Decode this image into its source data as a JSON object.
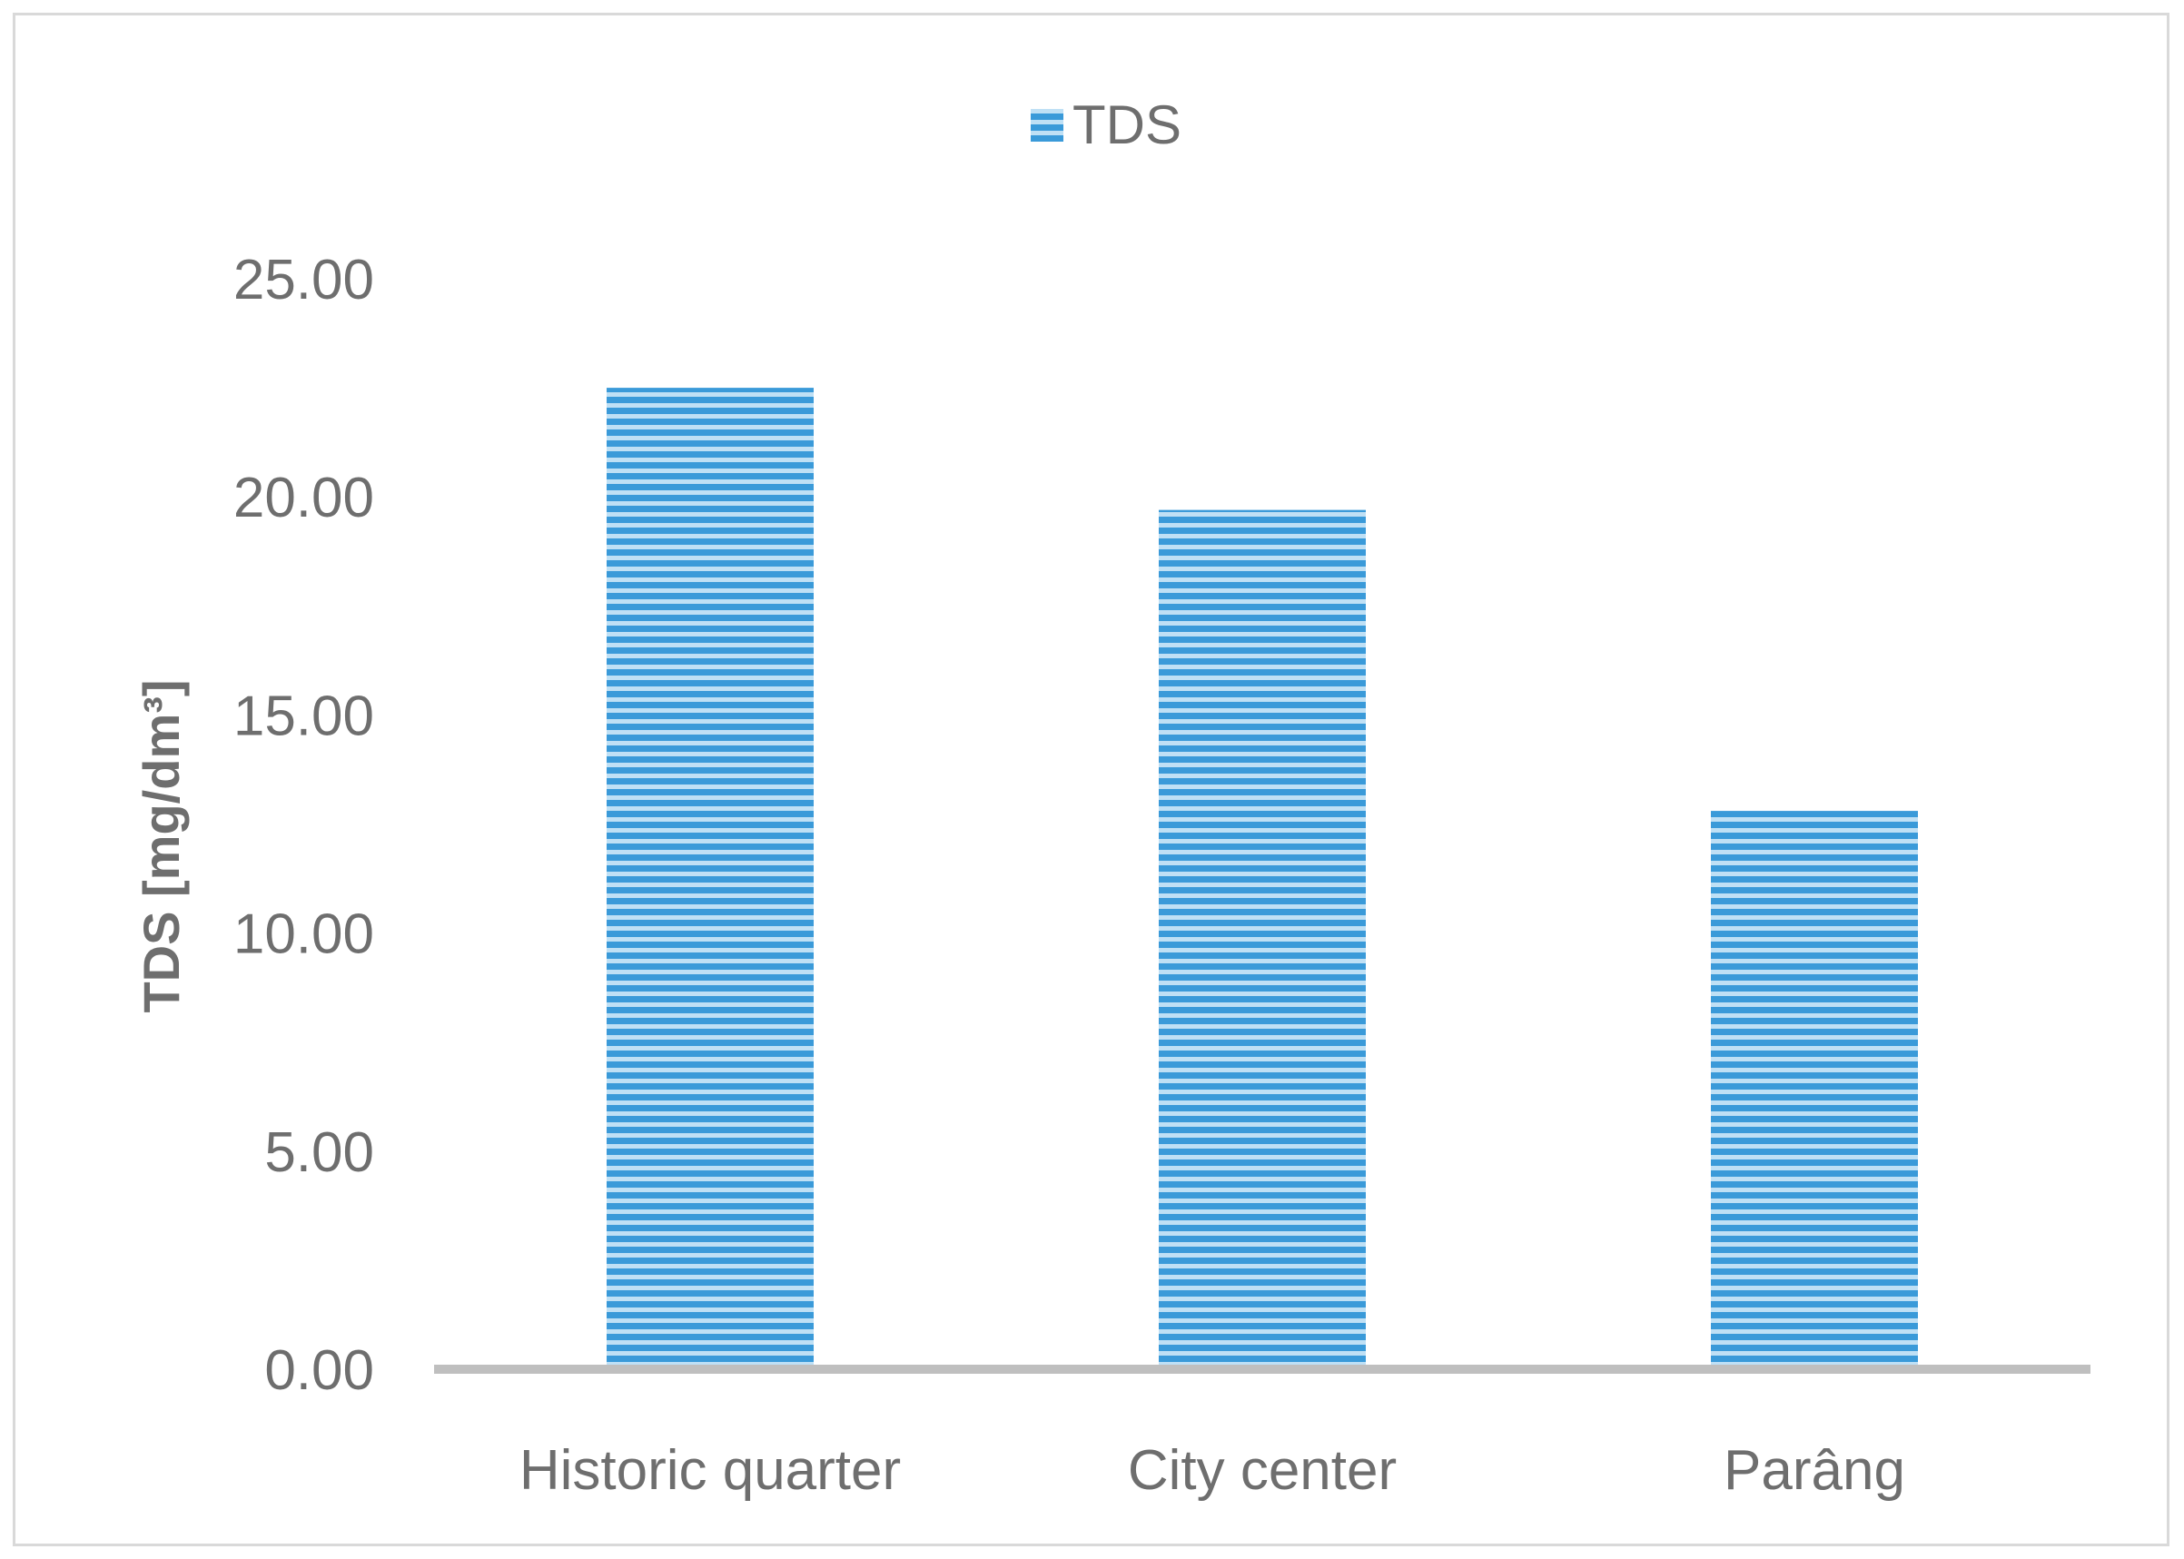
{
  "chart_data": {
    "type": "bar",
    "categories": [
      "Historic quarter",
      "City center",
      "Parâng"
    ],
    "series": [
      {
        "name": "TDS",
        "values": [
          22.5,
          19.7,
          12.8
        ],
        "color": "#3a9ad9"
      }
    ],
    "title": "",
    "xlabel": "",
    "ylabel": "TDS [mg/dm³]",
    "ylim": [
      0,
      25
    ],
    "yticks": [
      "0.00",
      "5.00",
      "10.00",
      "15.00",
      "20.00",
      "25.00"
    ],
    "grid": false,
    "legend": {
      "position": "top-center",
      "entries": [
        "TDS"
      ]
    },
    "fill_pattern": "horizontal-stripes"
  }
}
